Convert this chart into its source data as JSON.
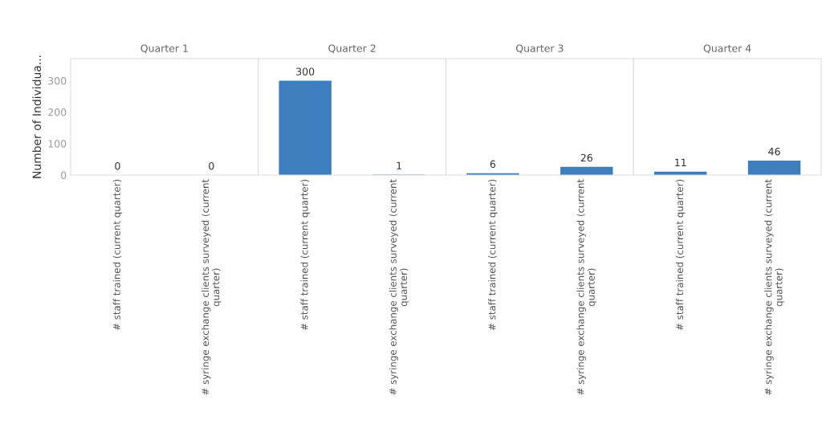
{
  "chart_data": [
    {
      "type": "bar",
      "title": "Quarter 1",
      "ylabel": "Number of Individua...",
      "categories": [
        "# staff trained (current quarter)",
        "# syringe exchange clients surveyed (current\nquarter)"
      ],
      "values": [
        0,
        0
      ],
      "color": "#3d7ebf",
      "ylim": [
        0,
        370
      ],
      "yticks": [
        0,
        100,
        200,
        300
      ],
      "data_labels": true,
      "grid": false
    },
    {
      "type": "bar",
      "title": "Quarter 2",
      "categories": [
        "# staff trained (current quarter)",
        "# syringe exchange clients surveyed (current\nquarter)"
      ],
      "values": [
        300,
        1
      ],
      "color": "#3d7ebf",
      "ylim": [
        0,
        370
      ],
      "data_labels": true,
      "grid": false,
      "tick_labels": "x"
    },
    {
      "type": "bar",
      "title": "Quarter 3",
      "categories": [
        "# staff trained (current quarter)",
        "# syringe exchange clients surveyed (current\nquarter)"
      ],
      "values": [
        6,
        26
      ],
      "color": "#3d7ebf",
      "ylim": [
        0,
        370
      ],
      "data_labels": true,
      "grid": false,
      "tick_labels": "x"
    },
    {
      "type": "bar",
      "title": "Quarter 4",
      "categories": [
        "# staff trained (current quarter)",
        "# syringe exchange clients surveyed (current\nquarter)"
      ],
      "values": [
        11,
        46
      ],
      "color": "#3d7ebf",
      "ylim": [
        0,
        370
      ],
      "data_labels": true,
      "grid": false,
      "tick_labels": "x"
    }
  ]
}
